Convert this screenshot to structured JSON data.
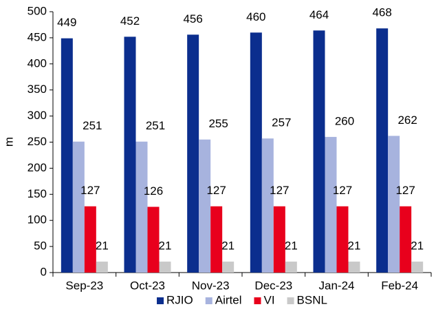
{
  "chart_data": {
    "type": "bar",
    "y_label": "m",
    "categories": [
      "Sep-23",
      "Oct-23",
      "Nov-23",
      "Dec-23",
      "Jan-24",
      "Feb-24"
    ],
    "series": [
      {
        "name": "RJIO",
        "color": "#0b2e8e",
        "values": [
          449,
          452,
          456,
          460,
          464,
          468
        ]
      },
      {
        "name": "Airtel",
        "color": "#a7b3de",
        "values": [
          251,
          251,
          255,
          257,
          260,
          262
        ]
      },
      {
        "name": "VI",
        "color": "#e8001c",
        "values": [
          127,
          126,
          127,
          127,
          127,
          127
        ]
      },
      {
        "name": "BSNL",
        "color": "#c9c9c9",
        "values": [
          21,
          21,
          21,
          21,
          21,
          21
        ]
      }
    ],
    "ylim": [
      0,
      500
    ],
    "yticks": [
      0,
      50,
      100,
      150,
      200,
      250,
      300,
      350,
      400,
      450,
      500
    ],
    "grid": false,
    "legend": "bottom"
  }
}
